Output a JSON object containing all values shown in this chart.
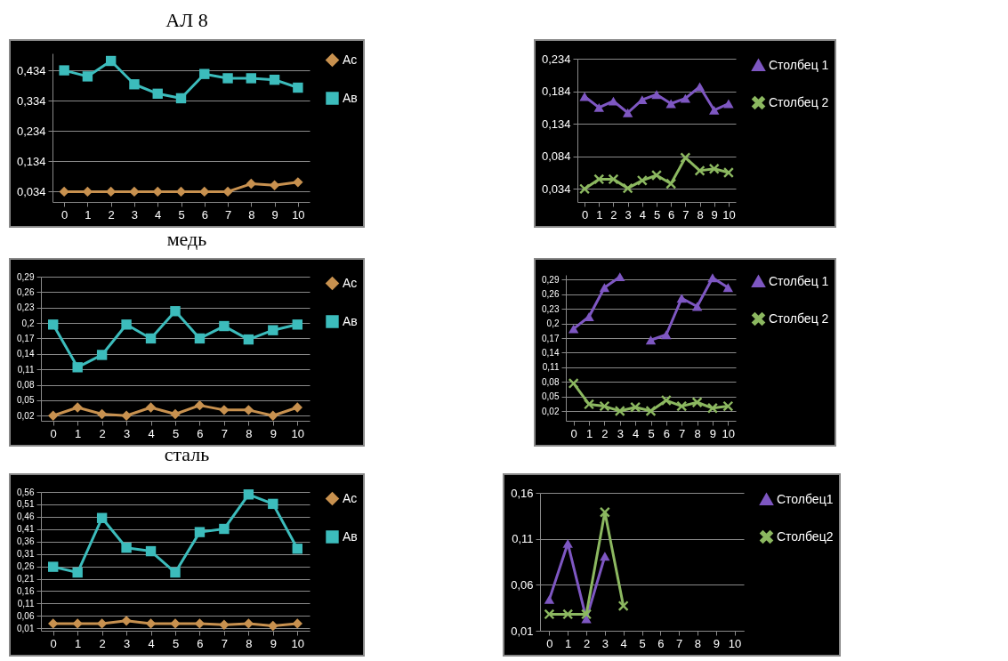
{
  "chart_data": [
    {
      "type": "line",
      "title": "АЛ 8",
      "categories": [
        "0",
        "1",
        "2",
        "3",
        "4",
        "5",
        "6",
        "7",
        "8",
        "9",
        "10"
      ],
      "series": [
        {
          "name": "Ас",
          "color": "#c8914f",
          "marker": "diamond",
          "values": [
            0.034,
            0.034,
            0.034,
            0.034,
            0.034,
            0.034,
            0.034,
            0.034,
            0.06,
            0.055,
            0.065
          ]
        },
        {
          "name": "Ав",
          "color": "#3cbcbc",
          "marker": "square",
          "values": [
            0.434,
            0.414,
            0.465,
            0.388,
            0.357,
            0.342,
            0.422,
            0.408,
            0.408,
            0.403,
            0.377
          ]
        }
      ],
      "ylim": [
        0,
        0.49
      ],
      "yticks": [
        {
          "value": 0.034,
          "label": "0,034"
        },
        {
          "value": 0.134,
          "label": "0,134"
        },
        {
          "value": 0.234,
          "label": "0,234"
        },
        {
          "value": 0.334,
          "label": "0,334"
        },
        {
          "value": 0.434,
          "label": "0,434"
        }
      ],
      "grid": "y",
      "legend": "right"
    },
    {
      "type": "line",
      "categories": [
        "0",
        "1",
        "2",
        "3",
        "4",
        "5",
        "6",
        "7",
        "8",
        "9",
        "10"
      ],
      "series": [
        {
          "name": "Столбец 1",
          "color": "#7e57c2",
          "marker": "triangle",
          "values": [
            0.176,
            0.159,
            0.169,
            0.151,
            0.171,
            0.179,
            0.165,
            0.173,
            0.191,
            0.155,
            0.165
          ]
        },
        {
          "name": "Столбец 2",
          "color": "#8cb860",
          "marker": "cross",
          "values": [
            0.034,
            0.049,
            0.049,
            0.035,
            0.047,
            0.055,
            0.042,
            0.082,
            0.062,
            0.065,
            0.059
          ]
        }
      ],
      "ylim": [
        0.014,
        0.234
      ],
      "yticks": [
        {
          "value": 0.034,
          "label": "0,034"
        },
        {
          "value": 0.084,
          "label": "0,084"
        },
        {
          "value": 0.134,
          "label": "0,134"
        },
        {
          "value": 0.184,
          "label": "0,184"
        },
        {
          "value": 0.234,
          "label": "0,234"
        }
      ],
      "grid": "y",
      "legend": "right"
    },
    {
      "type": "line",
      "title": "медь",
      "categories": [
        "0",
        "1",
        "2",
        "3",
        "4",
        "5",
        "6",
        "7",
        "8",
        "9",
        "10"
      ],
      "series": [
        {
          "name": "Ас",
          "color": "#c8914f",
          "marker": "diamond",
          "values": [
            0.02,
            0.036,
            0.023,
            0.02,
            0.036,
            0.023,
            0.04,
            0.031,
            0.031,
            0.02,
            0.036
          ]
        },
        {
          "name": "Ав",
          "color": "#3cbcbc",
          "marker": "square",
          "values": [
            0.197,
            0.114,
            0.138,
            0.197,
            0.17,
            0.223,
            0.17,
            0.194,
            0.168,
            0.186,
            0.197
          ]
        }
      ],
      "ylim": [
        0.01,
        0.29
      ],
      "yticks": [
        {
          "value": 0.02,
          "label": "0,02"
        },
        {
          "value": 0.05,
          "label": "0,05"
        },
        {
          "value": 0.08,
          "label": "0,08"
        },
        {
          "value": 0.11,
          "label": "0,11"
        },
        {
          "value": 0.14,
          "label": "0,14"
        },
        {
          "value": 0.17,
          "label": "0,17"
        },
        {
          "value": 0.2,
          "label": "0,2"
        },
        {
          "value": 0.23,
          "label": "0,23"
        },
        {
          "value": 0.26,
          "label": "0,26"
        },
        {
          "value": 0.29,
          "label": "0,29"
        }
      ],
      "grid": "y",
      "legend": "right"
    },
    {
      "type": "line",
      "categories": [
        "0",
        "1",
        "2",
        "3",
        "4",
        "5",
        "6",
        "7",
        "8",
        "9",
        "10"
      ],
      "series": [
        {
          "name": "Столбец 1",
          "color": "#7e57c2",
          "marker": "triangle",
          "values": [
            0.189,
            0.214,
            0.274,
            0.296,
            null,
            0.166,
            0.177,
            0.252,
            0.235,
            0.294,
            0.274
          ]
        },
        {
          "name": "Столбец 2",
          "color": "#8cb860",
          "marker": "cross",
          "values": [
            0.077,
            0.034,
            0.03,
            0.02,
            0.028,
            0.02,
            0.042,
            0.03,
            0.038,
            0.026,
            0.03
          ]
        }
      ],
      "ylim": [
        0,
        0.3
      ],
      "yticks": [
        {
          "value": 0.02,
          "label": "0,02"
        },
        {
          "value": 0.05,
          "label": "0,05"
        },
        {
          "value": 0.08,
          "label": "0,08"
        },
        {
          "value": 0.11,
          "label": "0,11"
        },
        {
          "value": 0.14,
          "label": "0,14"
        },
        {
          "value": 0.17,
          "label": "0,17"
        },
        {
          "value": 0.2,
          "label": "0,2"
        },
        {
          "value": 0.23,
          "label": "0,23"
        },
        {
          "value": 0.26,
          "label": "0,26"
        },
        {
          "value": 0.29,
          "label": "0,29"
        }
      ],
      "grid": "y",
      "legend": "right"
    },
    {
      "type": "line",
      "title": "сталь",
      "categories": [
        "0",
        "1",
        "2",
        "3",
        "4",
        "5",
        "6",
        "7",
        "8",
        "9",
        "10"
      ],
      "series": [
        {
          "name": "Ас",
          "color": "#c8914f",
          "marker": "diamond",
          "values": [
            0.029,
            0.029,
            0.029,
            0.04,
            0.029,
            0.029,
            0.029,
            0.024,
            0.029,
            0.02,
            0.029
          ]
        },
        {
          "name": "Ав",
          "color": "#3cbcbc",
          "marker": "square",
          "values": [
            0.258,
            0.235,
            0.455,
            0.335,
            0.321,
            0.235,
            0.398,
            0.411,
            0.55,
            0.512,
            0.331
          ]
        }
      ],
      "ylim": [
        0,
        0.56
      ],
      "yticks": [
        {
          "value": 0.01,
          "label": "0,01"
        },
        {
          "value": 0.06,
          "label": "0,06"
        },
        {
          "value": 0.11,
          "label": "0,11"
        },
        {
          "value": 0.16,
          "label": "0,16"
        },
        {
          "value": 0.21,
          "label": "0,21"
        },
        {
          "value": 0.26,
          "label": "0,26"
        },
        {
          "value": 0.31,
          "label": "0,31"
        },
        {
          "value": 0.36,
          "label": "0,36"
        },
        {
          "value": 0.41,
          "label": "0,41"
        },
        {
          "value": 0.46,
          "label": "0,46"
        },
        {
          "value": 0.51,
          "label": "0,51"
        },
        {
          "value": 0.56,
          "label": "0,56"
        }
      ],
      "grid": "y",
      "legend": "right"
    },
    {
      "type": "line",
      "categories": [
        "0",
        "1",
        "2",
        "3",
        "4",
        "5",
        "6",
        "7",
        "8",
        "9",
        "10"
      ],
      "series": [
        {
          "name": "Столбец1",
          "color": "#7e57c2",
          "marker": "triangle",
          "values": [
            0.044,
            0.105,
            0.023,
            0.091,
            null,
            null,
            null,
            null,
            null,
            null,
            null
          ]
        },
        {
          "name": "Столбец2",
          "color": "#8cb860",
          "marker": "cross",
          "values": [
            0.028,
            0.028,
            0.028,
            0.139,
            0.037,
            null,
            null,
            null,
            null,
            null,
            null
          ]
        }
      ],
      "ylim": [
        0.01,
        0.16
      ],
      "yticks": [
        {
          "value": 0.01,
          "label": "0,01"
        },
        {
          "value": 0.06,
          "label": "0,06"
        },
        {
          "value": 0.11,
          "label": "0,11"
        },
        {
          "value": 0.16,
          "label": "0,16"
        }
      ],
      "grid": "y",
      "legend": "right"
    }
  ]
}
